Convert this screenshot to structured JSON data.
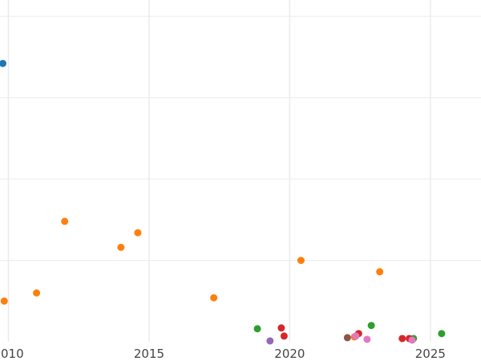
{
  "chart_data": {
    "type": "scatter",
    "title": "",
    "xlabel": "",
    "ylabel": "",
    "xlim": [
      2009.7,
      2026.8
    ],
    "ylim": [
      0,
      21
    ],
    "x_ticks": [
      2010,
      2015,
      2020,
      2025
    ],
    "x_tick_labels": [
      "2010",
      "2015",
      "2020",
      "2025"
    ],
    "y_gridlines": [
      5,
      10,
      15,
      20
    ],
    "grid": true,
    "series": [
      {
        "color": "#1f77b4",
        "points": [
          {
            "x": 2009.8,
            "y": 17.1
          }
        ]
      },
      {
        "color": "#ff7f0e",
        "points": [
          {
            "x": 2009.85,
            "y": 2.5
          },
          {
            "x": 2011.0,
            "y": 3.0
          },
          {
            "x": 2012.0,
            "y": 7.4
          },
          {
            "x": 2014.0,
            "y": 5.8
          },
          {
            "x": 2014.6,
            "y": 6.7
          },
          {
            "x": 2017.3,
            "y": 2.7
          },
          {
            "x": 2020.4,
            "y": 5.0
          },
          {
            "x": 2023.2,
            "y": 4.3
          },
          {
            "x": 2022.3,
            "y": 0.3
          }
        ]
      },
      {
        "color": "#2ca02c",
        "points": [
          {
            "x": 2018.85,
            "y": 0.8
          },
          {
            "x": 2022.9,
            "y": 1.0
          },
          {
            "x": 2024.4,
            "y": 0.2
          },
          {
            "x": 2025.4,
            "y": 0.5
          }
        ]
      },
      {
        "color": "#d62728",
        "points": [
          {
            "x": 2019.7,
            "y": 0.85
          },
          {
            "x": 2019.8,
            "y": 0.35
          },
          {
            "x": 2022.45,
            "y": 0.5
          },
          {
            "x": 2024.0,
            "y": 0.2
          },
          {
            "x": 2024.25,
            "y": 0.2
          }
        ]
      },
      {
        "color": "#9467bd",
        "points": [
          {
            "x": 2019.3,
            "y": 0.05
          }
        ]
      },
      {
        "color": "#8c564b",
        "points": [
          {
            "x": 2022.05,
            "y": 0.25
          }
        ]
      },
      {
        "color": "#e377c2",
        "points": [
          {
            "x": 2022.35,
            "y": 0.35
          },
          {
            "x": 2022.75,
            "y": 0.15
          },
          {
            "x": 2024.35,
            "y": 0.1
          }
        ]
      }
    ]
  }
}
